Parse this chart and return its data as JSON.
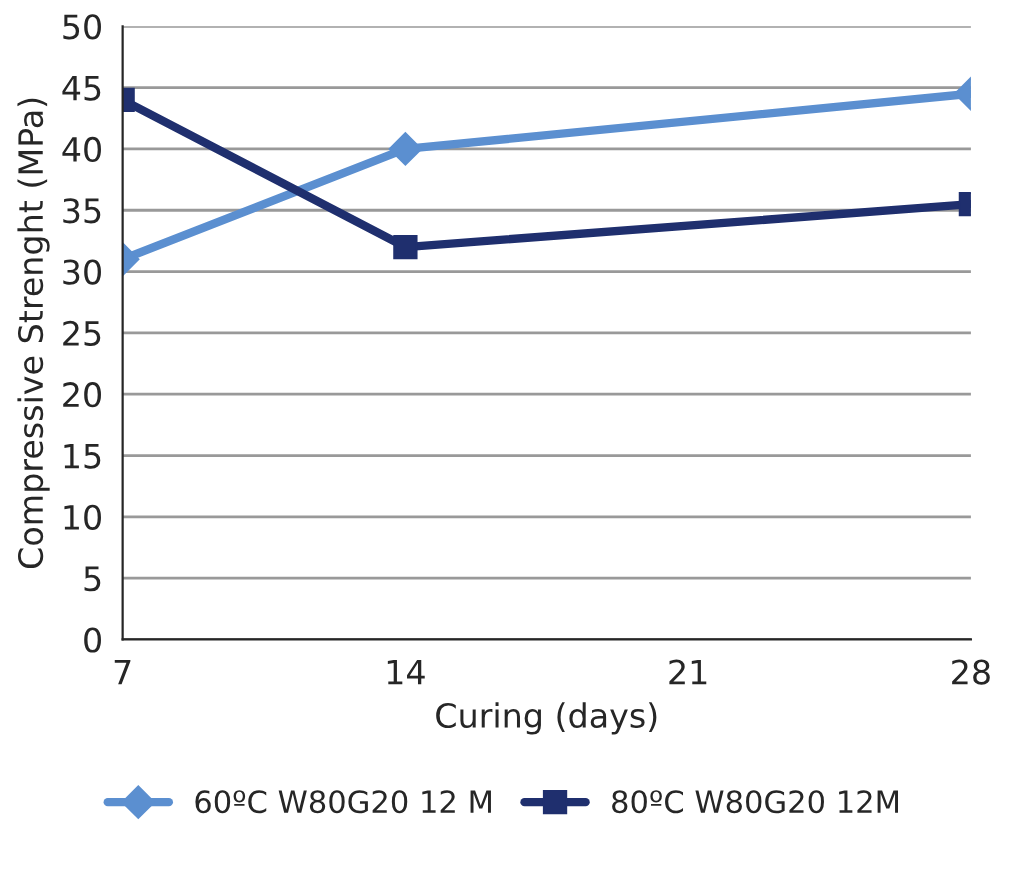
{
  "chart_data": {
    "type": "line",
    "xlabel": "Curing (days)",
    "ylabel": "Compressive Strenght (MPa)",
    "x": [
      7,
      14,
      28
    ],
    "series": [
      {
        "name": "60ºC W80G20 12 M",
        "color": "#5b8fd0",
        "marker": "diamond",
        "values": [
          31,
          40,
          44.5
        ]
      },
      {
        "name": "80ºC W80G20 12M",
        "color": "#1f2f6e",
        "marker": "square",
        "values": [
          44,
          32,
          35.5
        ]
      }
    ],
    "xlim": [
      7,
      28
    ],
    "xticks": [
      7,
      14,
      21,
      28
    ],
    "ylim": [
      0,
      50
    ],
    "yticks": [
      0,
      5,
      10,
      15,
      20,
      25,
      30,
      35,
      40,
      45,
      50
    ],
    "grid": "y",
    "legend": "bottom",
    "line_style": "solid"
  }
}
